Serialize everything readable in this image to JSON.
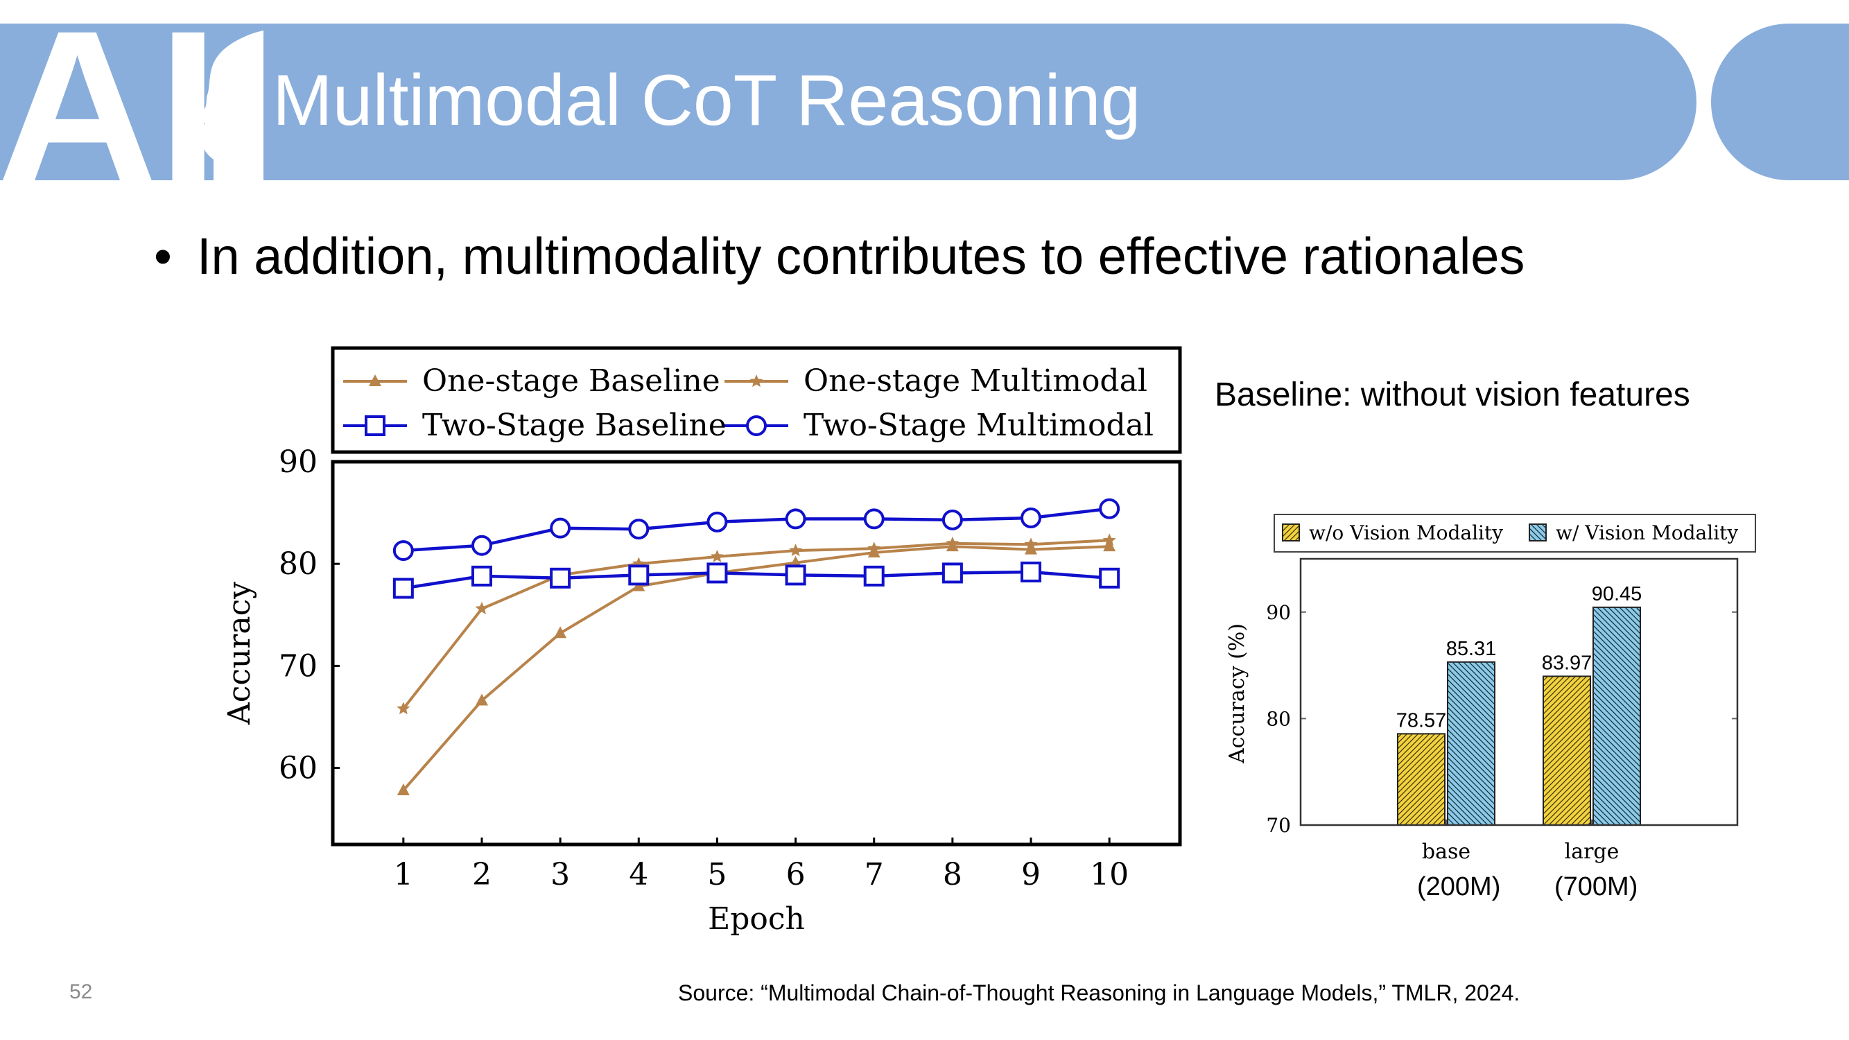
{
  "header": {
    "title": "Multimodal CoT Reasoning",
    "logo_text": "AI",
    "color": "#8aaedb"
  },
  "bullet": {
    "symbol": "•",
    "text": "In addition, multimodality contributes to effective rationales"
  },
  "baseline_note": "Baseline: without vision features",
  "param_labels": {
    "base": "(200M)",
    "large": "(700M)"
  },
  "footer": {
    "page_number": "52",
    "source": "Source: “Multimodal Chain-of-Thought Reasoning in Language Models,” TMLR, 2024."
  },
  "chart_data": [
    {
      "type": "line",
      "title": "",
      "xlabel": "Epoch",
      "ylabel": "Accuracy",
      "x": [
        1,
        2,
        3,
        4,
        5,
        6,
        7,
        8,
        9,
        10
      ],
      "xlim": [
        0.1,
        10.9
      ],
      "ylim": [
        52.5,
        90
      ],
      "yticks": [
        60,
        70,
        80,
        90
      ],
      "grid": false,
      "legend": "top",
      "series": [
        {
          "name": "One-stage Baseline",
          "color": "#b8834a",
          "marker": "triangle",
          "values": [
            57.8,
            66.6,
            73.2,
            77.8,
            79.1,
            80.1,
            81.1,
            81.7,
            81.4,
            81.7
          ]
        },
        {
          "name": "One-stage Multimodal",
          "color": "#b8834a",
          "marker": "star",
          "values": [
            65.8,
            75.6,
            78.9,
            80.0,
            80.7,
            81.3,
            81.5,
            82.0,
            81.9,
            82.3
          ]
        },
        {
          "name": "Two-Stage Baseline",
          "color": "#1010cc",
          "marker": "square",
          "values": [
            77.6,
            78.8,
            78.6,
            78.9,
            79.1,
            78.9,
            78.8,
            79.1,
            79.2,
            78.6
          ]
        },
        {
          "name": "Two-Stage Multimodal",
          "color": "#1010cc",
          "marker": "circle",
          "values": [
            81.3,
            81.8,
            83.5,
            83.4,
            84.1,
            84.4,
            84.4,
            84.3,
            84.5,
            85.4
          ]
        }
      ]
    },
    {
      "type": "bar",
      "title": "",
      "xlabel": "",
      "ylabel": "Accuracy (%)",
      "categories": [
        "base",
        "large"
      ],
      "ylim": [
        70,
        95
      ],
      "yticks": [
        70,
        80,
        90
      ],
      "grid": false,
      "legend": "top",
      "series": [
        {
          "name": "w/o Vision Modality",
          "color": "#f2d33f",
          "values": [
            78.57,
            83.97
          ]
        },
        {
          "name": "w/ Vision Modality",
          "color": "#8ec9e6",
          "values": [
            85.31,
            90.45
          ]
        }
      ]
    }
  ]
}
